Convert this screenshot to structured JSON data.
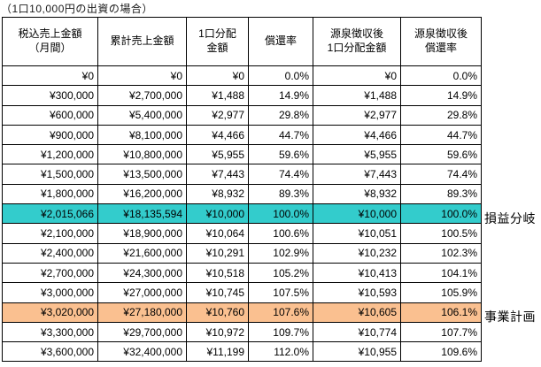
{
  "page_title": "（1口10,000円の出資の場合）",
  "colors": {
    "breakeven": "#33CCCC",
    "plan": "#FAC090",
    "border": "#000000",
    "background": "#FFFFFF"
  },
  "table": {
    "headers": [
      "税込売上金額\n（月間）",
      "累計売上金額",
      "1口分配\n金額",
      "償還率",
      "源泉徴収後\n1口分配金額",
      "源泉徴収後\n償還率"
    ],
    "rows": [
      {
        "cells": [
          "¥0",
          "¥0",
          "¥0",
          "0.0%",
          "¥0",
          "0.0%"
        ],
        "highlight": null
      },
      {
        "cells": [
          "¥300,000",
          "¥2,700,000",
          "¥1,488",
          "14.9%",
          "¥1,488",
          "14.9%"
        ],
        "highlight": null
      },
      {
        "cells": [
          "¥600,000",
          "¥5,400,000",
          "¥2,977",
          "29.8%",
          "¥2,977",
          "29.8%"
        ],
        "highlight": null
      },
      {
        "cells": [
          "¥900,000",
          "¥8,100,000",
          "¥4,466",
          "44.7%",
          "¥4,466",
          "44.7%"
        ],
        "highlight": null
      },
      {
        "cells": [
          "¥1,200,000",
          "¥10,800,000",
          "¥5,955",
          "59.6%",
          "¥5,955",
          "59.6%"
        ],
        "highlight": null
      },
      {
        "cells": [
          "¥1,500,000",
          "¥13,500,000",
          "¥7,443",
          "74.4%",
          "¥7,443",
          "74.4%"
        ],
        "highlight": null
      },
      {
        "cells": [
          "¥1,800,000",
          "¥16,200,000",
          "¥8,932",
          "89.3%",
          "¥8,932",
          "89.3%"
        ],
        "highlight": null
      },
      {
        "cells": [
          "¥2,015,066",
          "¥18,135,594",
          "¥10,000",
          "100.0%",
          "¥10,000",
          "100.0%"
        ],
        "highlight": "breakeven",
        "note": "損益分岐"
      },
      {
        "cells": [
          "¥2,100,000",
          "¥18,900,000",
          "¥10,064",
          "100.6%",
          "¥10,051",
          "100.5%"
        ],
        "highlight": null
      },
      {
        "cells": [
          "¥2,400,000",
          "¥21,600,000",
          "¥10,291",
          "102.9%",
          "¥10,232",
          "102.3%"
        ],
        "highlight": null
      },
      {
        "cells": [
          "¥2,700,000",
          "¥24,300,000",
          "¥10,518",
          "105.2%",
          "¥10,413",
          "104.1%"
        ],
        "highlight": null
      },
      {
        "cells": [
          "¥3,000,000",
          "¥27,000,000",
          "¥10,745",
          "107.5%",
          "¥10,593",
          "105.9%"
        ],
        "highlight": null
      },
      {
        "cells": [
          "¥3,020,000",
          "¥27,180,000",
          "¥10,760",
          "107.6%",
          "¥10,605",
          "106.1%"
        ],
        "highlight": "plan",
        "note": "事業計画"
      },
      {
        "cells": [
          "¥3,300,000",
          "¥29,700,000",
          "¥10,972",
          "109.7%",
          "¥10,774",
          "107.7%"
        ],
        "highlight": null
      },
      {
        "cells": [
          "¥3,600,000",
          "¥32,400,000",
          "¥11,199",
          "112.0%",
          "¥10,955",
          "109.6%"
        ],
        "highlight": null
      }
    ]
  },
  "annotations": [
    {
      "label": "損益分岐"
    },
    {
      "label": "事業計画"
    }
  ]
}
